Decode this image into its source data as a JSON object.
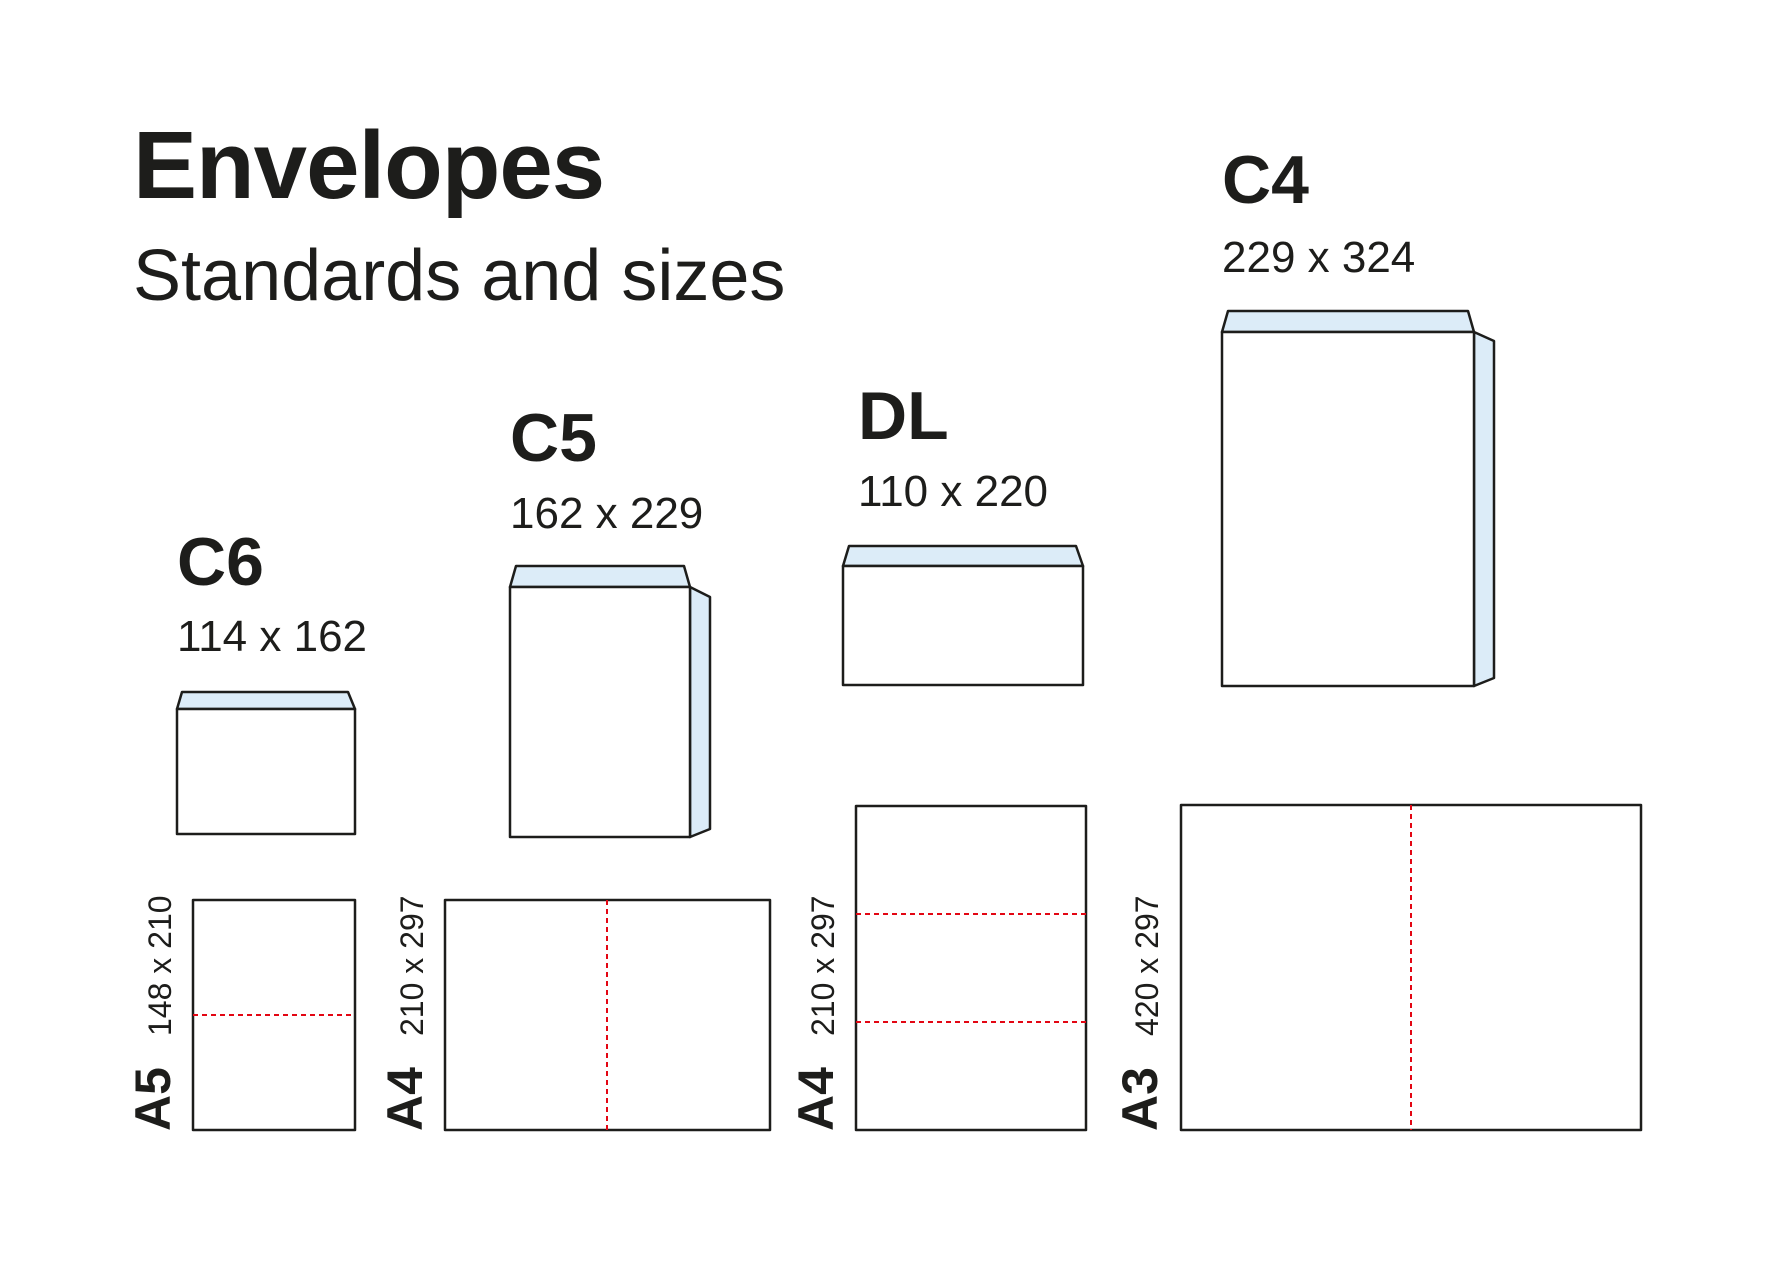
{
  "header": {
    "title": "Envelopes",
    "subtitle": "Standards and sizes"
  },
  "colors": {
    "outline": "#1d1d1b",
    "flap": "#dcecf8",
    "fold_line": "#e30613"
  },
  "envelopes": [
    {
      "name": "C6",
      "size": "114 x 162"
    },
    {
      "name": "C5",
      "size": "162 x 229"
    },
    {
      "name": "DL",
      "size": "110 x 220"
    },
    {
      "name": "C4",
      "size": "229 x 324"
    }
  ],
  "papers": [
    {
      "name": "A5",
      "size": "148 x 210",
      "fold": "half-horizontal"
    },
    {
      "name": "A4",
      "size": "210 x 297",
      "fold": "half-vertical"
    },
    {
      "name": "A4",
      "size": "210 x 297",
      "fold": "thirds-horizontal"
    },
    {
      "name": "A3",
      "size": "420 x 297",
      "fold": "half-vertical"
    }
  ]
}
